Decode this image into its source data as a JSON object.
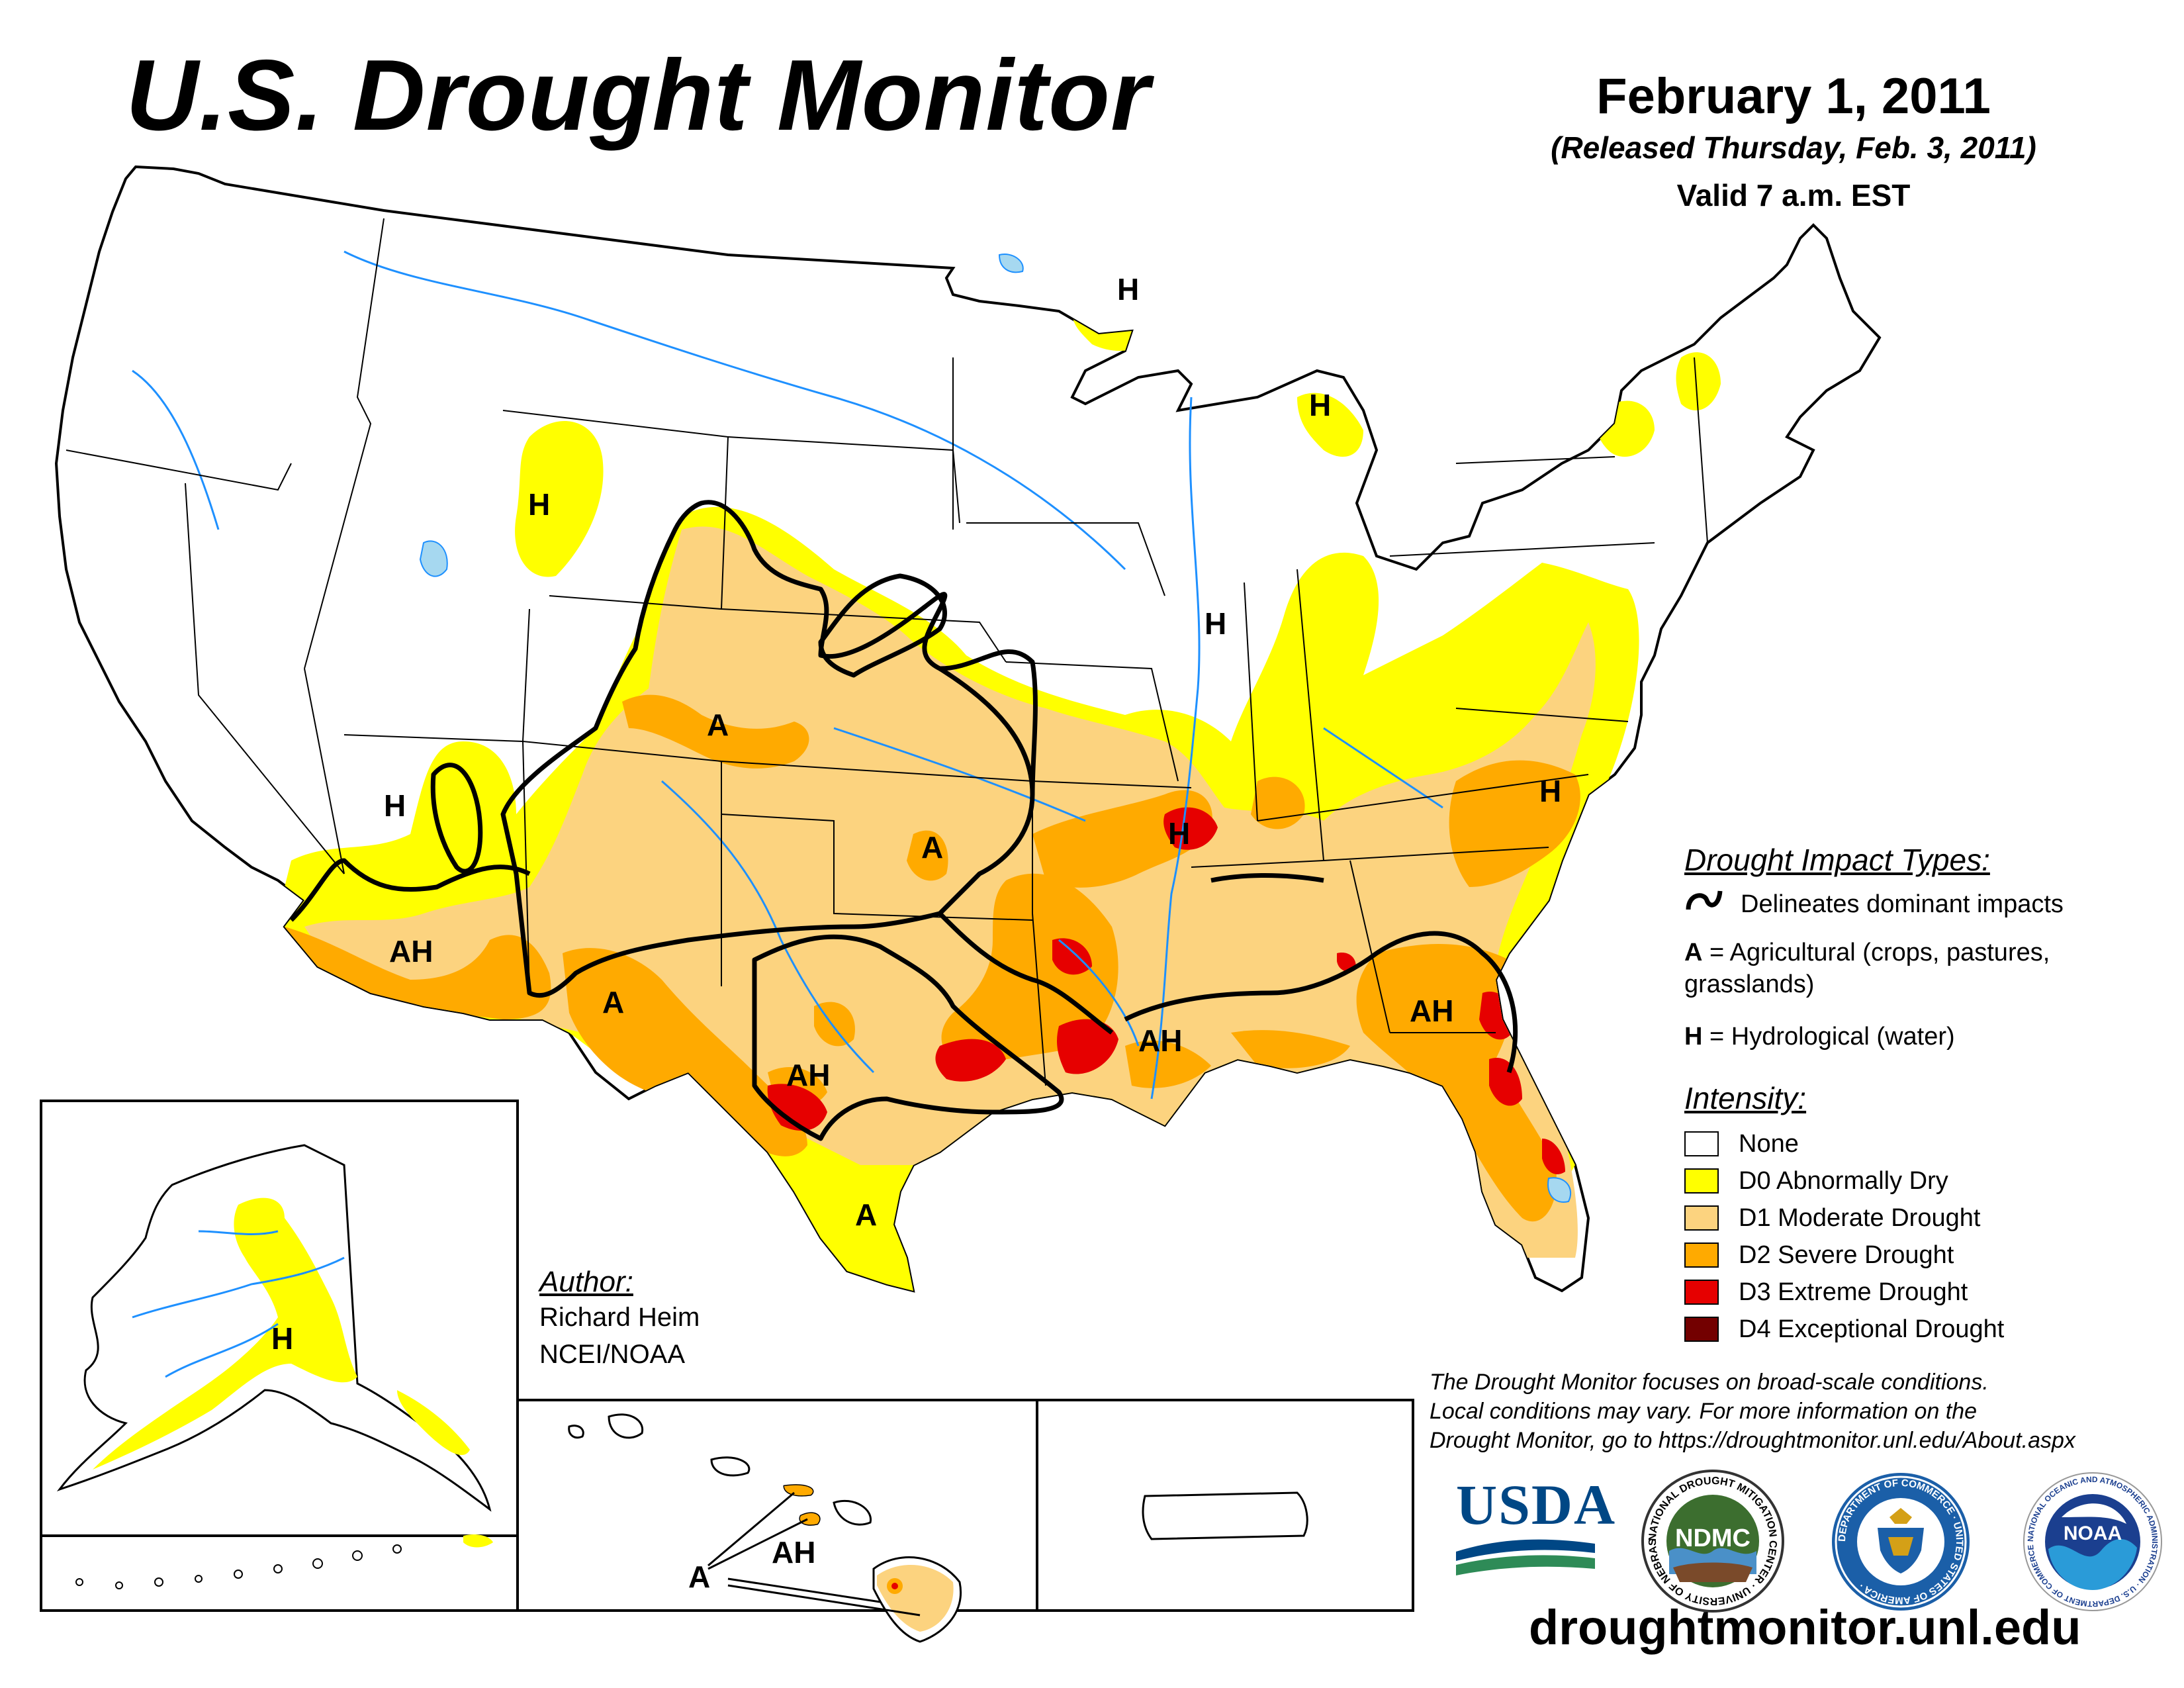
{
  "header": {
    "title": "U.S. Drought Monitor",
    "date": "February 1, 2011",
    "released": "(Released Thursday, Feb. 3, 2011)",
    "valid": "Valid 7 a.m. EST"
  },
  "colors": {
    "none": "#ffffff",
    "d0": "#ffff00",
    "d1": "#fcd37f",
    "d2": "#ffaa00",
    "d3": "#e60000",
    "d4": "#730000",
    "water": "#1e90ff",
    "lake": "#a6d8f0"
  },
  "map_labels": {
    "h_mt": "H",
    "h_mn": "H",
    "h_mi": "H",
    "h_il": "H",
    "h_nv": "H",
    "h_nc": "H",
    "h_ar": "H",
    "a_co": "A",
    "a_ks": "A",
    "a_nm": "A",
    "a_tx_s": "A",
    "ah_az": "AH",
    "ah_tx": "AH",
    "ah_la": "AH",
    "ah_ga": "AH",
    "h_ak": "H",
    "a_hi": "A",
    "ah_hi": "AH"
  },
  "legend": {
    "impact_title": "Drought Impact Types:",
    "delineates": "Delineates dominant impacts",
    "a_key": "A",
    "a_desc": " = Agricultural (crops, pastures,",
    "a_desc2": "grasslands)",
    "h_key": "H",
    "h_desc": " = Hydrological (water)",
    "intensity_title": "Intensity:",
    "levels": [
      {
        "label": "None",
        "color": "#ffffff"
      },
      {
        "label": "D0 Abnormally Dry",
        "color": "#ffff00"
      },
      {
        "label": "D1 Moderate Drought",
        "color": "#fcd37f"
      },
      {
        "label": "D2 Severe Drought",
        "color": "#ffaa00"
      },
      {
        "label": "D3 Extreme Drought",
        "color": "#e60000"
      },
      {
        "label": "D4 Exceptional Drought",
        "color": "#730000"
      }
    ]
  },
  "author": {
    "heading": "Author:",
    "name": "Richard Heim",
    "org": "NCEI/NOAA"
  },
  "disclaimer": {
    "line1": "The Drought Monitor focuses on broad-scale conditions.",
    "line2": "Local conditions may vary. For more information on the",
    "line3": "Drought Monitor, go to https://droughtmonitor.unl.edu/About.aspx"
  },
  "logos": {
    "usda": "USDA",
    "ndmc": "NDMC",
    "ndmc_ring": "NATIONAL DROUGHT MITIGATION CENTER · UNIVERSITY OF NEBRASKA ·",
    "commerce_ring": "DEPARTMENT OF COMMERCE · UNITED STATES OF AMERICA ·",
    "noaa": "NOAA",
    "noaa_ring": "NATIONAL OCEANIC AND ATMOSPHERIC ADMINISTRATION · U.S. DEPARTMENT OF COMMERCE ·"
  },
  "website": "droughtmonitor.unl.edu"
}
